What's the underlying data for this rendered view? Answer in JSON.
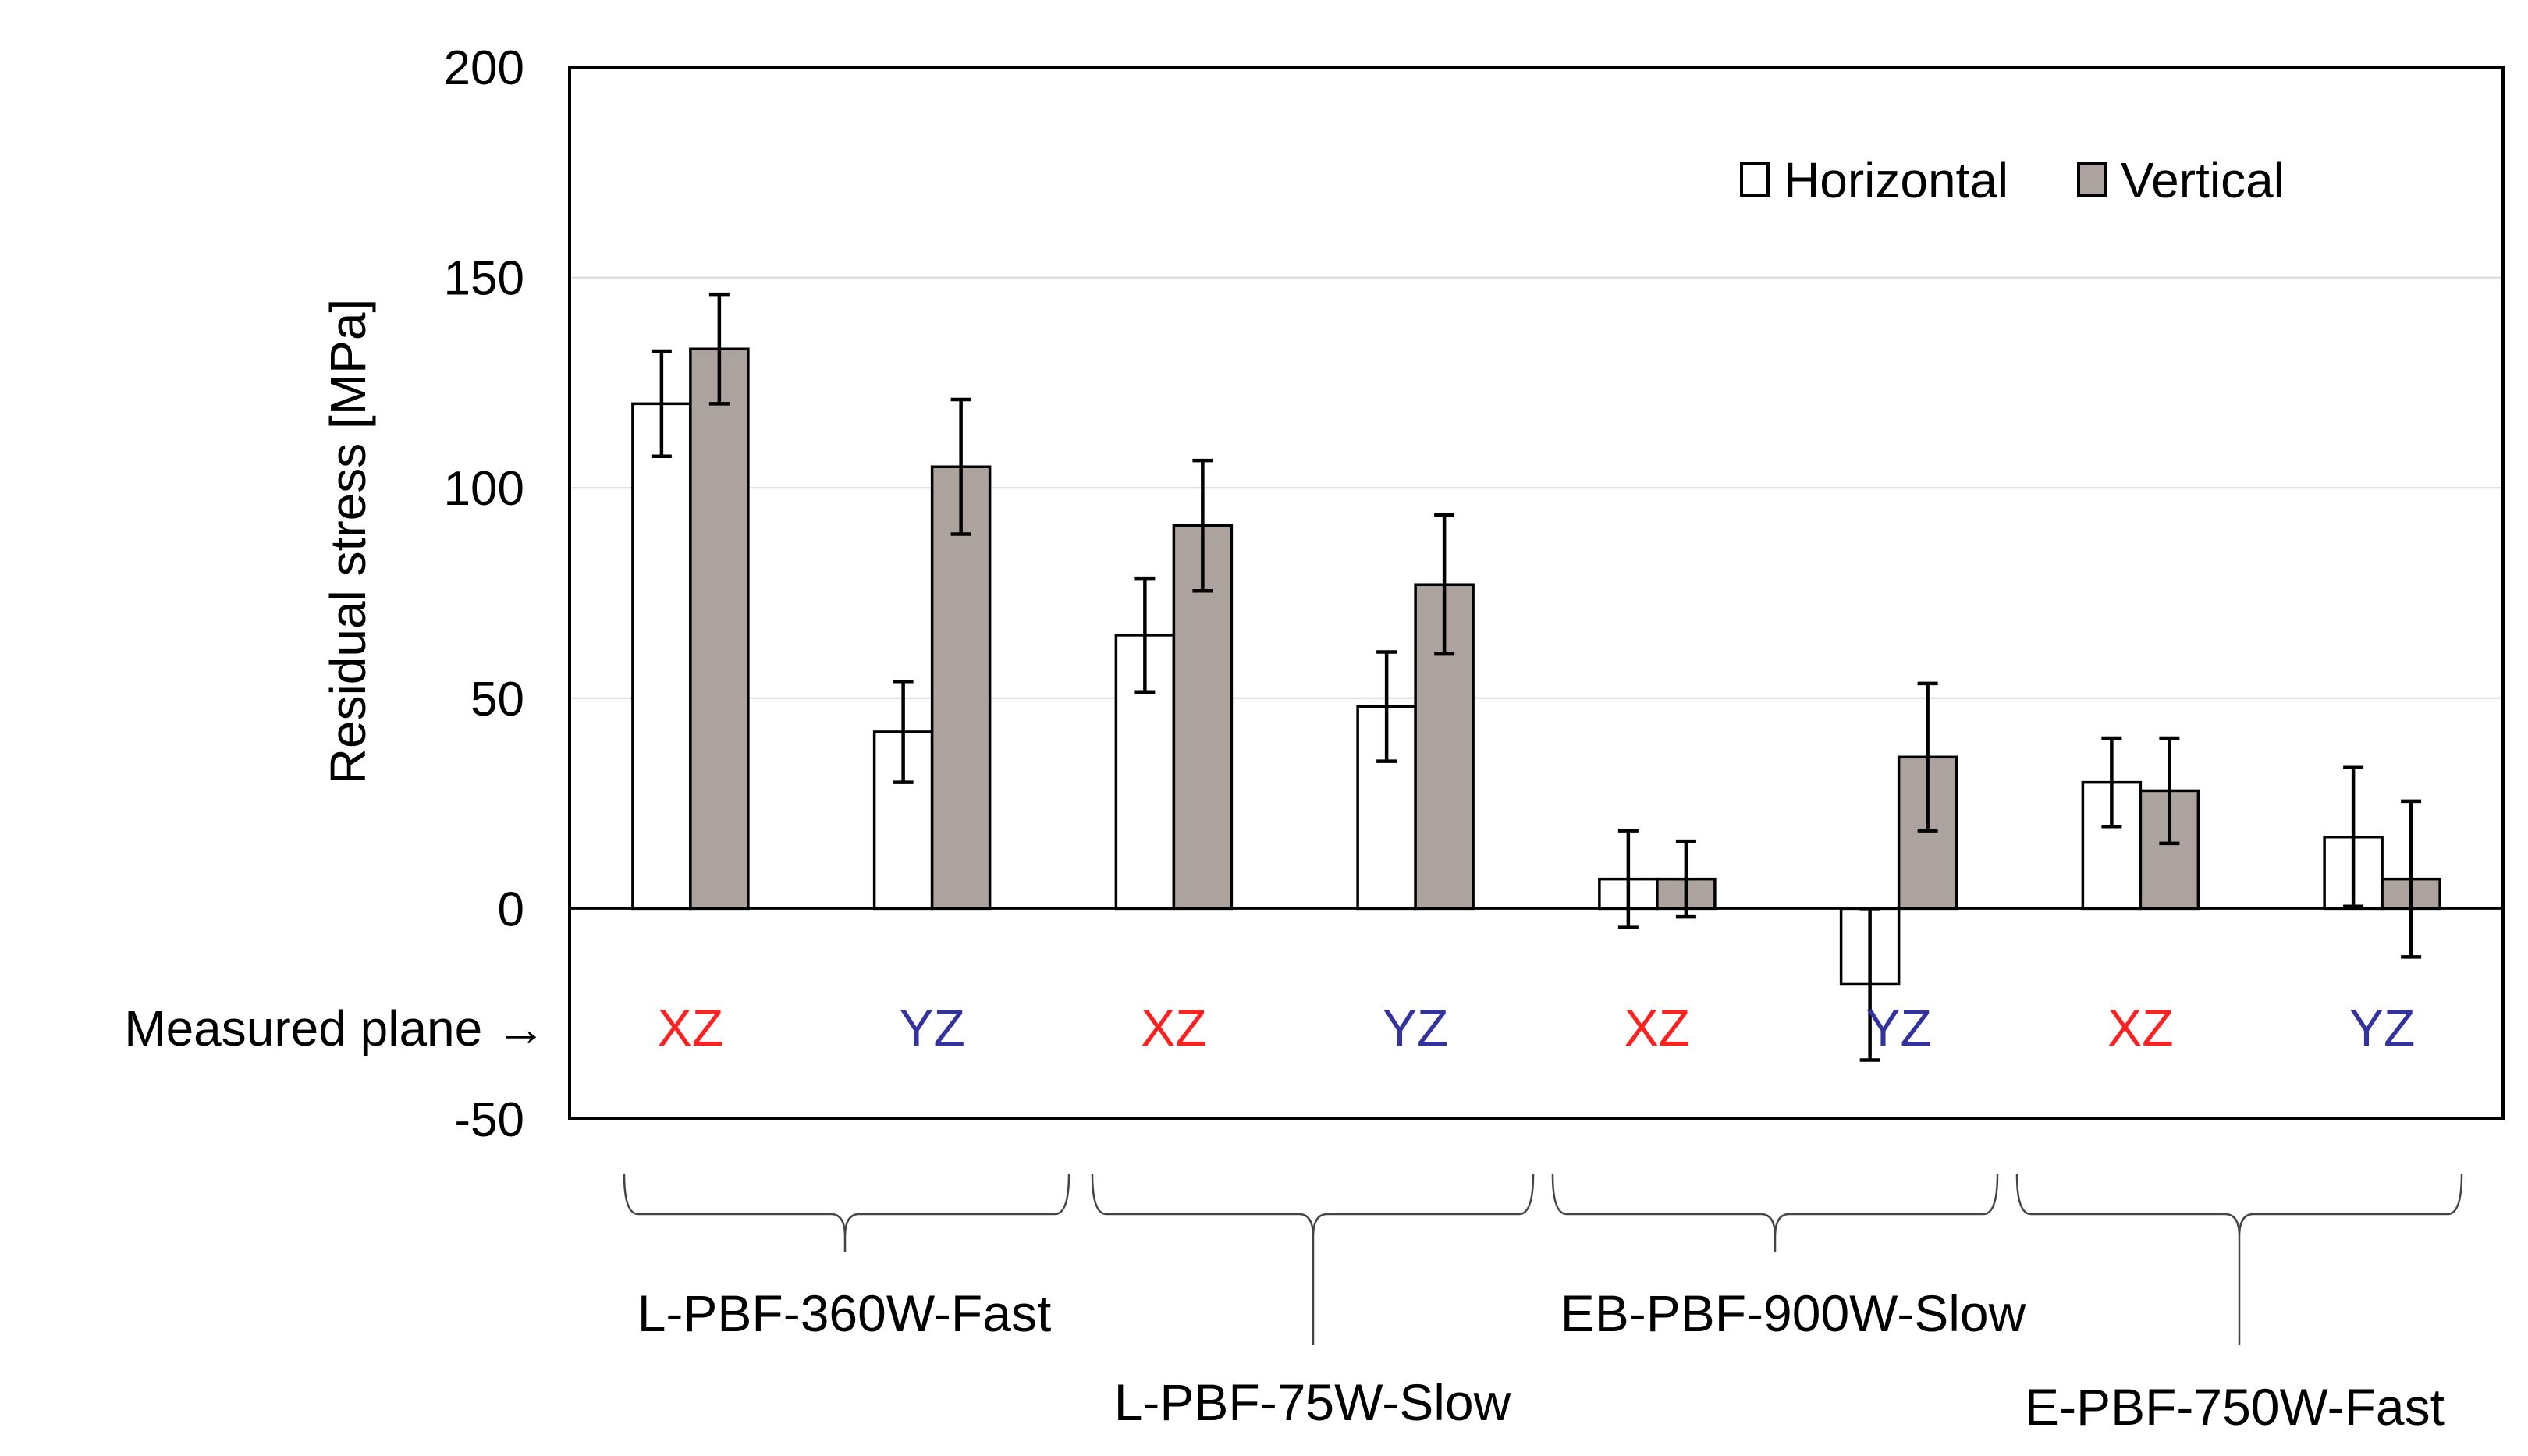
{
  "chart_data": {
    "type": "bar",
    "ylabel": "Residual stress [MPa]",
    "ylim": [
      -50,
      200
    ],
    "yticks": [
      -50,
      0,
      50,
      100,
      150,
      200
    ],
    "grid": true,
    "legend_position": "top-right",
    "row_label": "Measured plane →",
    "categories": [
      "XZ",
      "YZ",
      "XZ",
      "YZ",
      "XZ",
      "YZ",
      "XZ",
      "YZ"
    ],
    "category_colors": [
      "#ff2020",
      "#3333a0",
      "#ff2020",
      "#3333a0",
      "#ff2020",
      "#3333a0",
      "#ff2020",
      "#3333a0"
    ],
    "series": [
      {
        "name": "Horizontal",
        "color": "#ffffff",
        "values": [
          120,
          42,
          65,
          48,
          7,
          -18,
          30,
          17
        ],
        "errors": [
          12.5,
          12,
          13.5,
          13,
          11.5,
          18,
          10.5,
          16.5
        ]
      },
      {
        "name": "Vertical",
        "color": "#aca39e",
        "values": [
          133,
          105,
          91,
          77,
          7,
          36,
          28,
          7
        ],
        "errors": [
          13,
          16,
          15.5,
          16.5,
          9,
          17.5,
          12.5,
          18.5
        ]
      }
    ],
    "groups": [
      {
        "label": "L-PBF-360W-Fast",
        "categories": [
          0,
          1
        ]
      },
      {
        "label": "L-PBF-75W-Slow",
        "categories": [
          2,
          3
        ]
      },
      {
        "label": "EB-PBF-900W-Slow",
        "categories": [
          4,
          5
        ]
      },
      {
        "label": "E-PBF-750W-Fast",
        "categories": [
          6,
          7
        ]
      }
    ]
  }
}
